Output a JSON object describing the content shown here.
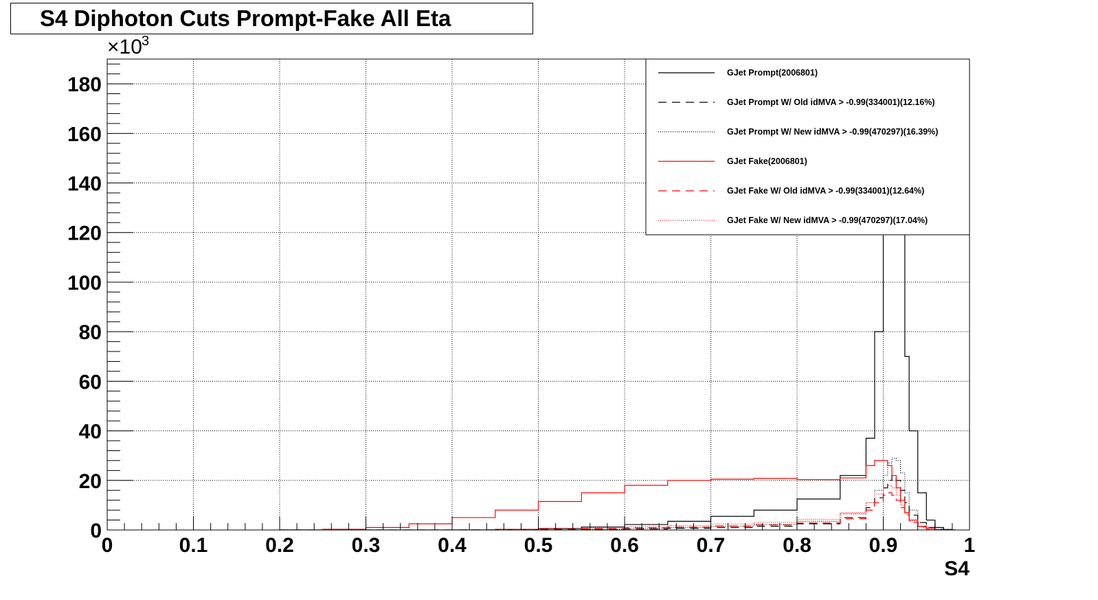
{
  "chart_data": {
    "type": "line",
    "title": "S4 Diphoton Cuts Prompt-Fake All Eta",
    "xlabel": "S4",
    "ylabel": "",
    "y_multiplier": "×10",
    "y_multiplier_exponent": "3",
    "xlim": [
      0,
      1
    ],
    "ylim": [
      0,
      190
    ],
    "x_ticks": [
      "0",
      "0.1",
      "0.2",
      "0.3",
      "0.4",
      "0.5",
      "0.6",
      "0.7",
      "0.8",
      "0.9",
      "1"
    ],
    "y_ticks": [
      "0",
      "20",
      "40",
      "60",
      "80",
      "100",
      "120",
      "140",
      "160",
      "180"
    ],
    "grid": true,
    "legend_position": "top-right",
    "x": [
      0.2,
      0.25,
      0.3,
      0.35,
      0.4,
      0.45,
      0.5,
      0.55,
      0.6,
      0.65,
      0.7,
      0.75,
      0.8,
      0.85,
      0.88,
      0.89,
      0.9,
      0.905,
      0.91,
      0.915,
      0.92,
      0.925,
      0.93,
      0.94,
      0.95,
      0.96,
      0.97,
      0.98
    ],
    "series": [
      {
        "name": "GJet Prompt(2006801)",
        "color": "#000000",
        "dash": "solid",
        "values": [
          0,
          0,
          0,
          0,
          0,
          0.2,
          0.6,
          1.2,
          2.2,
          3.5,
          5.5,
          8,
          12.5,
          22,
          37,
          80,
          150,
          185,
          188,
          175,
          120,
          70,
          40,
          15,
          4,
          1,
          0.2,
          0
        ]
      },
      {
        "name": "GJet Prompt W/ Old idMVA > -0.99(334001)(12.16%)",
        "color": "#000000",
        "dash": "dashed",
        "values": [
          0,
          0,
          0,
          0,
          0,
          0,
          0.1,
          0.2,
          0.4,
          0.7,
          1.0,
          1.5,
          2.5,
          5,
          9,
          13,
          17,
          20,
          22,
          20,
          16,
          11,
          6,
          3,
          1,
          0.3,
          0,
          0
        ]
      },
      {
        "name": "GJet Prompt W/ New idMVA > -0.99(470297)(16.39%)",
        "color": "#000000",
        "dash": "dotted",
        "values": [
          0,
          0,
          0,
          0,
          0,
          0,
          0.1,
          0.3,
          0.6,
          1.0,
          1.5,
          2.3,
          3.5,
          6.5,
          11,
          16,
          22,
          27,
          29,
          28,
          23,
          15,
          8,
          3,
          1,
          0.3,
          0,
          0
        ]
      },
      {
        "name": "GJet Fake(2006801)",
        "color": "#ff0000",
        "dash": "solid",
        "values": [
          0,
          0.3,
          1.0,
          2.5,
          5.0,
          8.0,
          11.5,
          15.0,
          18.0,
          20.0,
          20.5,
          20.8,
          20.3,
          21.0,
          26,
          28,
          28,
          26,
          22,
          17,
          12,
          7,
          4,
          1.5,
          0.5,
          0.1,
          0,
          0
        ]
      },
      {
        "name": "GJet Fake W/ Old idMVA > -0.99(334001)(12.64%)",
        "color": "#ff0000",
        "dash": "dashed",
        "values": [
          0,
          0,
          0,
          0,
          0.1,
          0.2,
          0.4,
          0.6,
          0.9,
          1.2,
          1.6,
          2.0,
          2.8,
          4.5,
          8,
          11,
          14,
          15,
          14,
          12,
          9,
          6,
          3,
          1.2,
          0.4,
          0.1,
          0,
          0
        ]
      },
      {
        "name": "GJet Fake W/ New idMVA > -0.99(470297)(17.04%)",
        "color": "#ff0000",
        "dash": "dotted",
        "values": [
          0,
          0,
          0,
          0,
          0.1,
          0.3,
          0.5,
          0.9,
          1.3,
          1.8,
          2.4,
          3.1,
          4.3,
          7,
          11,
          14.5,
          17,
          18,
          17,
          14,
          10,
          6.5,
          3.5,
          1.3,
          0.4,
          0.1,
          0,
          0
        ]
      }
    ]
  }
}
